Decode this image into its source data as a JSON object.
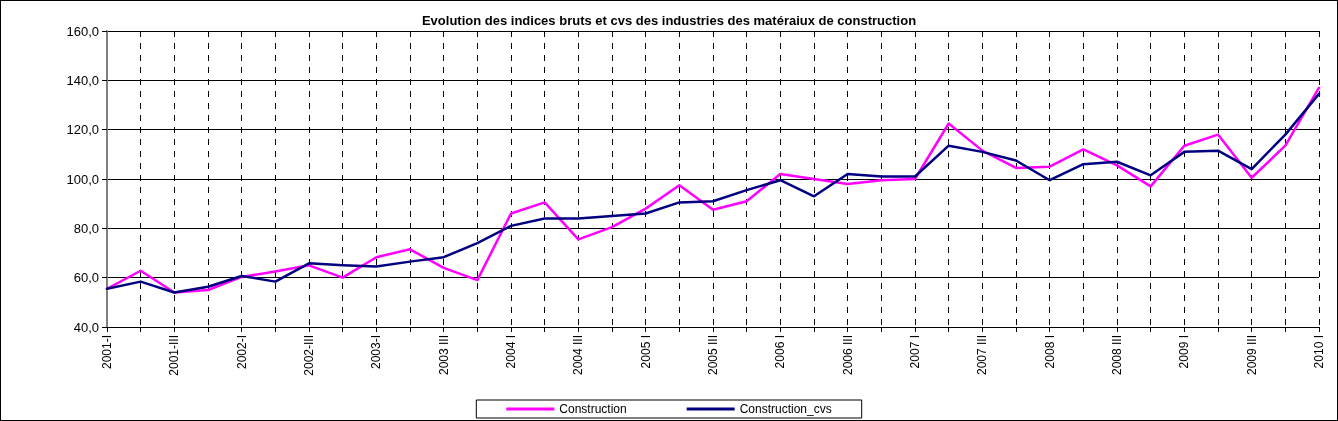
{
  "chart_data": {
    "type": "line",
    "title": "Evolution des indices bruts et cvs des industries des matéraiux de construction",
    "categories": [
      "2001-I",
      null,
      "2001-III",
      null,
      "2002-I",
      null,
      "2002-III",
      null,
      "2003-I",
      null,
      "2003 III",
      null,
      "2004 I",
      null,
      "2004 III",
      null,
      "2005 I",
      null,
      "2005 III",
      null,
      "2006 I",
      null,
      "2006 III",
      null,
      "2007 I",
      null,
      "2007 III",
      null,
      "2008 I",
      null,
      "2008 III",
      null,
      "2009 I",
      null,
      "2009 III",
      null,
      "2010 I"
    ],
    "series": [
      {
        "name": "Construction",
        "color": "#ff00ff",
        "values": [
          55.5,
          62.8,
          54,
          55,
          60.3,
          62.5,
          65,
          60,
          68.3,
          71.5,
          64,
          59,
          86,
          90.5,
          75.5,
          80.5,
          88,
          97.5,
          87.5,
          91,
          102,
          100,
          98,
          99.5,
          100,
          122.5,
          111.5,
          104.5,
          105,
          112,
          105.5,
          97,
          113.5,
          118,
          100.5,
          113.5,
          137
        ]
      },
      {
        "name": "Construction_cvs",
        "color": "#000080",
        "values": [
          55.5,
          58.4,
          54,
          56.3,
          60.7,
          58.4,
          65.8,
          65,
          64.5,
          66.5,
          68.3,
          74,
          81,
          84,
          84,
          85,
          86,
          90.5,
          91,
          95.5,
          99.5,
          93,
          102,
          101,
          101,
          113.5,
          111,
          107.5,
          99.5,
          106,
          107,
          101.5,
          111,
          111.5,
          104,
          118,
          134.5
        ]
      }
    ],
    "ylim": [
      40,
      160
    ],
    "yticks": [
      {
        "value": 40,
        "label": "40,0"
      },
      {
        "value": 60,
        "label": "60,0"
      },
      {
        "value": 80,
        "label": "80,0"
      },
      {
        "value": 100,
        "label": "100,0"
      },
      {
        "value": 120,
        "label": "120,0"
      },
      {
        "value": 140,
        "label": "140,0"
      },
      {
        "value": 160,
        "label": "160,0"
      }
    ],
    "grid": true,
    "legend": "bottom",
    "marker": "none",
    "line_style": "solid"
  }
}
